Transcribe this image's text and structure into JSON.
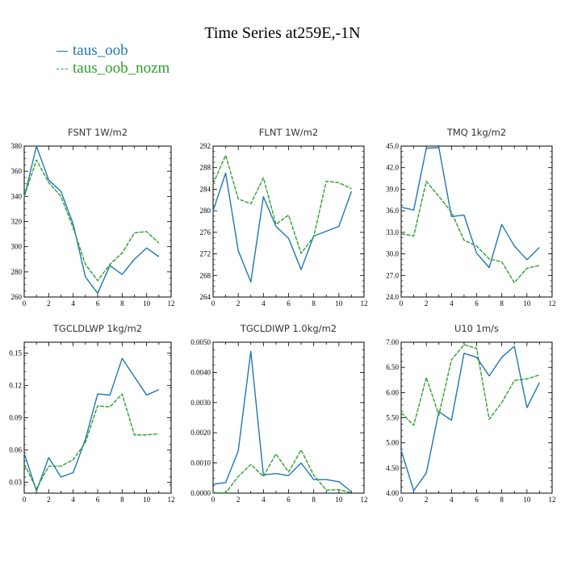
{
  "title": "Time Series at259E,-1N",
  "legend": [
    {
      "name": "taus_oob",
      "color": "#1f77b4"
    },
    {
      "name": "taus_oob_nozm",
      "color": "#2ca02c"
    }
  ],
  "chart_data": [
    {
      "type": "line",
      "title": "FSNT   1W/m2",
      "xlim": [
        0,
        12
      ],
      "ylim": [
        260,
        380
      ],
      "xticks": [
        "0",
        "2",
        "4",
        "6",
        "8",
        "10",
        "12"
      ],
      "yticks": [
        "260",
        "280",
        "300",
        "320",
        "340",
        "360",
        "380"
      ],
      "x": [
        0,
        1,
        2,
        3,
        4,
        5,
        6,
        7,
        8,
        9,
        10,
        11
      ],
      "series": [
        {
          "name": "taus_oob",
          "values": [
            339,
            380,
            353,
            344,
            318,
            276,
            263,
            285,
            278,
            290,
            299,
            292
          ]
        },
        {
          "name": "taus_oob_nozm",
          "values": [
            340,
            369,
            351,
            340,
            315,
            286,
            273,
            286,
            295,
            311,
            312,
            303
          ]
        }
      ]
    },
    {
      "type": "line",
      "title": "FLNT   1W/m2",
      "xlim": [
        0,
        12
      ],
      "ylim": [
        264,
        292
      ],
      "xticks": [
        "0",
        "2",
        "4",
        "6",
        "8",
        "10",
        "12"
      ],
      "yticks": [
        "264",
        "268",
        "272",
        "276",
        "280",
        "284",
        "288",
        "292"
      ],
      "x": [
        0,
        1,
        2,
        3,
        4,
        5,
        6,
        7,
        8,
        9,
        10,
        11
      ],
      "series": [
        {
          "name": "taus_oob",
          "values": [
            280,
            287,
            272.6,
            266.8,
            282.6,
            277.1,
            274.9,
            269.1,
            275.3,
            276.2,
            277.1,
            283.6
          ]
        },
        {
          "name": "taus_oob_nozm",
          "values": [
            285,
            290.3,
            282.2,
            281.3,
            286.1,
            277.5,
            279.2,
            272.1,
            275.2,
            285.5,
            285.2,
            284.1
          ]
        }
      ]
    },
    {
      "type": "line",
      "title": "TMQ   1kg/m2",
      "xlim": [
        0,
        12
      ],
      "ylim": [
        24,
        45
      ],
      "xticks": [
        "0",
        "2",
        "4",
        "6",
        "8",
        "10",
        "12"
      ],
      "yticks": [
        "24.0",
        "27.0",
        "30.0",
        "33.0",
        "36.0",
        "39.0",
        "42.0",
        "45.0"
      ],
      "x": [
        0,
        1,
        2,
        3,
        4,
        5,
        6,
        7,
        8,
        9,
        10,
        11
      ],
      "series": [
        {
          "name": "taus_oob",
          "values": [
            36.5,
            36.1,
            44.7,
            44.8,
            35.2,
            35.4,
            30.1,
            28.1,
            34.1,
            31.1,
            29.2,
            30.9
          ]
        },
        {
          "name": "taus_oob_nozm",
          "values": [
            32.8,
            32.5,
            40.1,
            38.0,
            35.8,
            31.9,
            31.1,
            29.3,
            28.9,
            26.0,
            28.0,
            28.4
          ]
        }
      ]
    },
    {
      "type": "line",
      "title": "TGCLDLWP   1kg/m2",
      "xlim": [
        0,
        12
      ],
      "ylim": [
        0.02,
        0.16
      ],
      "xticks": [
        "0",
        "2",
        "4",
        "6",
        "8",
        "10",
        "12"
      ],
      "yticks": [
        "0.03",
        "0.06",
        "0.09",
        "0.12",
        "0.15"
      ],
      "x": [
        0,
        1,
        2,
        3,
        4,
        5,
        6,
        7,
        8,
        9,
        10,
        11
      ],
      "series": [
        {
          "name": "taus_oob",
          "values": [
            0.057,
            0.022,
            0.053,
            0.035,
            0.039,
            0.07,
            0.112,
            0.111,
            0.145,
            0.128,
            0.111,
            0.116
          ]
        },
        {
          "name": "taus_oob_nozm",
          "values": [
            0.047,
            0.024,
            0.045,
            0.045,
            0.051,
            0.067,
            0.101,
            0.1,
            0.112,
            0.074,
            0.074,
            0.075
          ]
        }
      ]
    },
    {
      "type": "line",
      "title": "TGCLDIWP   1.0kg/m2",
      "xlim": [
        0,
        12
      ],
      "ylim": [
        0,
        0.005
      ],
      "xticks": [
        "0",
        "2",
        "4",
        "6",
        "8",
        "10",
        "12"
      ],
      "yticks": [
        "0.0000",
        "0.0010",
        "0.0020",
        "0.0030",
        "0.0040",
        "0.0050"
      ],
      "x": [
        0,
        1,
        2,
        3,
        4,
        5,
        6,
        7,
        8,
        9,
        10,
        11
      ],
      "series": [
        {
          "name": "taus_oob",
          "values": [
            0.0003,
            0.00035,
            0.0014,
            0.0047,
            0.0006,
            0.00065,
            0.00058,
            0.001,
            0.00045,
            0.00045,
            0.00038,
            5e-05
          ]
        },
        {
          "name": "taus_oob_nozm",
          "values": [
            2e-05,
            1e-05,
            0.00055,
            0.00095,
            0.00055,
            0.0013,
            0.0007,
            0.00143,
            0.0006,
            0.0001,
            0.00012,
            1e-05
          ]
        }
      ]
    },
    {
      "type": "line",
      "title": "U10   1m/s",
      "xlim": [
        0,
        12
      ],
      "ylim": [
        4.0,
        7.0
      ],
      "xticks": [
        "0",
        "2",
        "4",
        "6",
        "8",
        "10",
        "12"
      ],
      "yticks": [
        "4.00",
        "4.50",
        "5.00",
        "5.50",
        "6.00",
        "6.50",
        "7.00"
      ],
      "x": [
        0,
        1,
        2,
        3,
        4,
        5,
        6,
        7,
        8,
        9,
        10,
        11
      ],
      "series": [
        {
          "name": "taus_oob",
          "values": [
            4.85,
            4.05,
            4.4,
            5.62,
            5.45,
            6.78,
            6.7,
            6.33,
            6.7,
            6.92,
            5.7,
            6.2
          ]
        },
        {
          "name": "taus_oob_nozm",
          "values": [
            5.6,
            5.35,
            6.3,
            5.55,
            6.65,
            6.95,
            6.88,
            5.47,
            5.8,
            6.24,
            6.27,
            6.35
          ]
        }
      ]
    }
  ]
}
